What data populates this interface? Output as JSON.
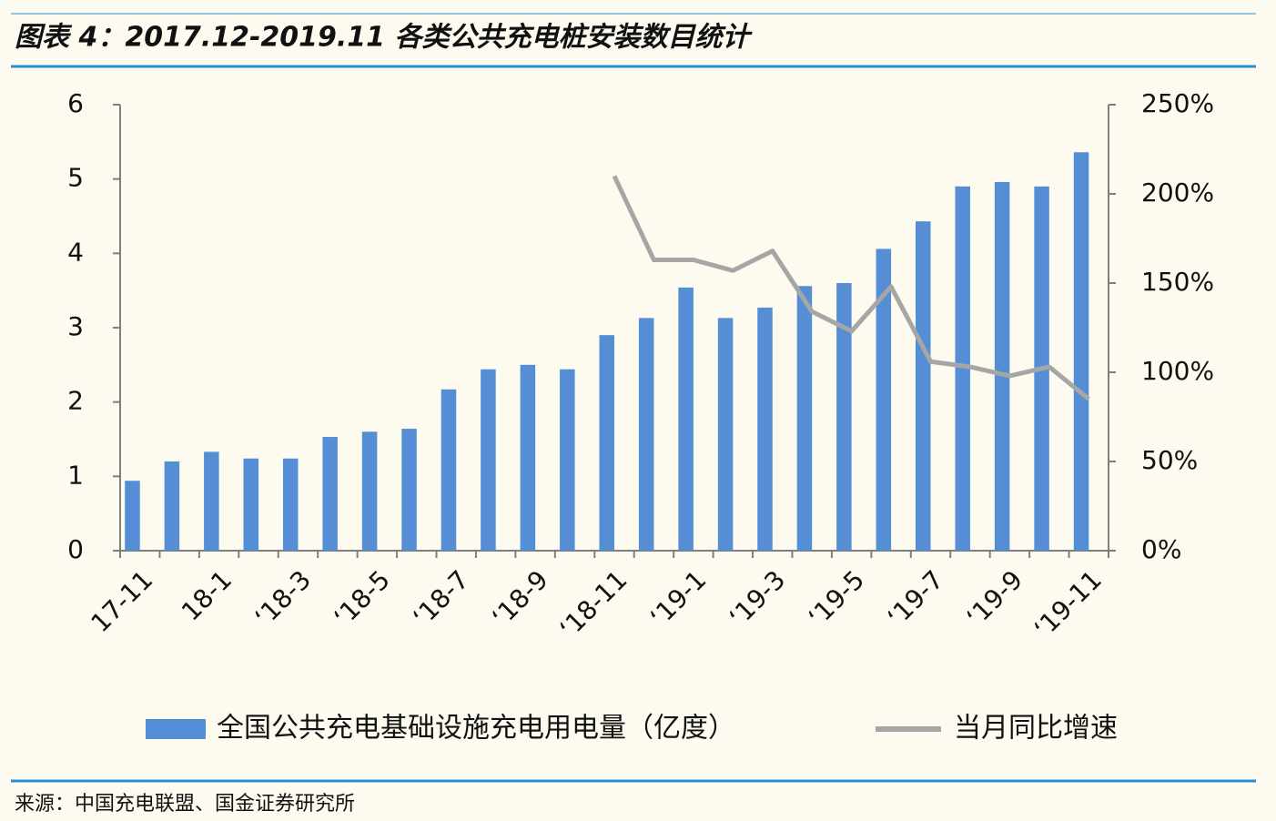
{
  "header": {
    "title": "图表 4：2017.12-2019.11 各类公共充电桩安装数目统计"
  },
  "chart_data": {
    "type": "bar",
    "categories": [
      "17-11",
      null,
      "18-1",
      null,
      "‘18-3",
      null,
      "‘18-5",
      null,
      "‘18-7",
      null,
      "‘18-9",
      null,
      "‘18-11",
      null,
      "‘19-1",
      null,
      "‘19-3",
      null,
      "‘19-5",
      null,
      "‘19-7",
      null,
      "‘19-9",
      null,
      "‘19-11"
    ],
    "series": [
      {
        "name": "全国公共充电基础设施充电用电量（亿度）",
        "type": "bar",
        "color": "#558ed5",
        "values": [
          0.94,
          1.2,
          1.33,
          1.24,
          1.24,
          1.53,
          1.6,
          1.64,
          2.17,
          2.44,
          2.5,
          2.44,
          2.9,
          3.13,
          3.54,
          3.13,
          3.27,
          3.56,
          3.6,
          4.06,
          4.43,
          4.9,
          4.96,
          4.9,
          5.36
        ]
      },
      {
        "name": "当月同比增速",
        "type": "line",
        "axis": "y2",
        "color": "#a6a6a6",
        "values": [
          null,
          null,
          null,
          null,
          null,
          null,
          null,
          null,
          null,
          null,
          null,
          null,
          210,
          163,
          163,
          157,
          168,
          134,
          123,
          148,
          106,
          103,
          98,
          103,
          85
        ]
      }
    ],
    "ylim": [
      0,
      6
    ],
    "yticks": [
      0,
      1,
      2,
      3,
      4,
      5,
      6
    ],
    "y2lim": [
      0,
      250
    ],
    "y2ticks": [
      {
        "value": 0,
        "label": "0%"
      },
      {
        "value": 50,
        "label": "50%"
      },
      {
        "value": 100,
        "label": "100%"
      },
      {
        "value": 150,
        "label": "150%"
      },
      {
        "value": 200,
        "label": "200%"
      },
      {
        "value": 250,
        "label": "250%"
      }
    ],
    "legend": "bottom"
  },
  "footer": {
    "source": "来源：中国充电联盟、国金证券研究所"
  }
}
